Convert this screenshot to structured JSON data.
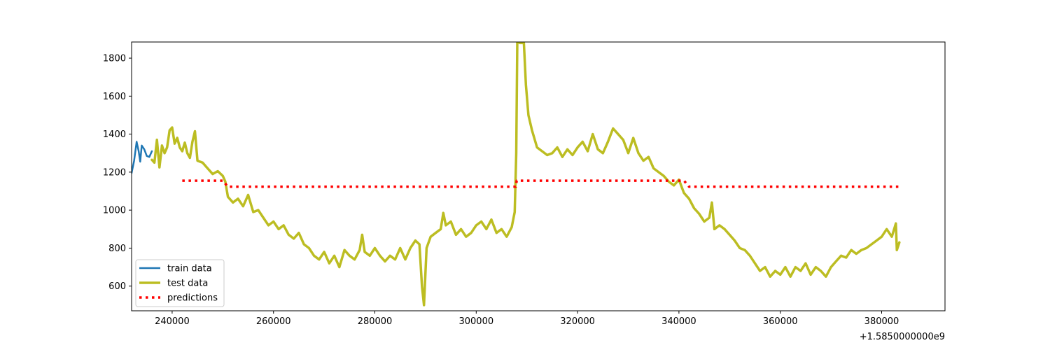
{
  "chart_data": {
    "type": "line",
    "title": "",
    "xlabel": "",
    "ylabel": "",
    "x_offset_label": "+1.5850000000e9",
    "xlim": [
      232000,
      392500
    ],
    "ylim": [
      470,
      1885
    ],
    "x_ticks": [
      240000,
      260000,
      280000,
      300000,
      320000,
      340000,
      360000,
      380000
    ],
    "x_tick_labels": [
      "240000",
      "260000",
      "280000",
      "300000",
      "320000",
      "340000",
      "360000",
      "380000"
    ],
    "y_ticks": [
      600,
      800,
      1000,
      1200,
      1400,
      1600,
      1800
    ],
    "y_tick_labels": [
      "600",
      "800",
      "1000",
      "1200",
      "1400",
      "1600",
      "1800"
    ],
    "grid": false,
    "legend_position": "lower-left",
    "series": [
      {
        "name": "train data",
        "color": "#1f77b4",
        "style": "solid",
        "points": [
          [
            232000,
            1195
          ],
          [
            232500,
            1260
          ],
          [
            233000,
            1360
          ],
          [
            233400,
            1310
          ],
          [
            233700,
            1255
          ],
          [
            234000,
            1340
          ],
          [
            234500,
            1320
          ],
          [
            235000,
            1285
          ],
          [
            235500,
            1280
          ],
          [
            236000,
            1310
          ]
        ]
      },
      {
        "name": "test data",
        "color": "#bcbd22",
        "style": "solid",
        "points": [
          [
            236000,
            1265
          ],
          [
            236500,
            1250
          ],
          [
            237000,
            1370
          ],
          [
            237500,
            1225
          ],
          [
            238000,
            1340
          ],
          [
            238500,
            1300
          ],
          [
            239000,
            1330
          ],
          [
            239500,
            1420
          ],
          [
            240000,
            1435
          ],
          [
            240500,
            1350
          ],
          [
            241000,
            1380
          ],
          [
            241500,
            1330
          ],
          [
            242000,
            1310
          ],
          [
            242500,
            1355
          ],
          [
            243000,
            1300
          ],
          [
            243500,
            1275
          ],
          [
            244000,
            1360
          ],
          [
            244500,
            1415
          ],
          [
            245000,
            1260
          ],
          [
            246000,
            1250
          ],
          [
            247000,
            1220
          ],
          [
            248000,
            1190
          ],
          [
            249000,
            1205
          ],
          [
            250000,
            1180
          ],
          [
            250500,
            1150
          ],
          [
            251000,
            1070
          ],
          [
            252000,
            1040
          ],
          [
            253000,
            1060
          ],
          [
            254000,
            1020
          ],
          [
            255000,
            1080
          ],
          [
            256000,
            990
          ],
          [
            257000,
            1000
          ],
          [
            258000,
            960
          ],
          [
            259000,
            920
          ],
          [
            260000,
            940
          ],
          [
            261000,
            900
          ],
          [
            262000,
            920
          ],
          [
            263000,
            870
          ],
          [
            264000,
            850
          ],
          [
            265000,
            880
          ],
          [
            266000,
            820
          ],
          [
            267000,
            800
          ],
          [
            268000,
            760
          ],
          [
            269000,
            740
          ],
          [
            270000,
            780
          ],
          [
            271000,
            720
          ],
          [
            272000,
            760
          ],
          [
            273000,
            700
          ],
          [
            274000,
            790
          ],
          [
            275000,
            760
          ],
          [
            276000,
            740
          ],
          [
            277000,
            790
          ],
          [
            277500,
            870
          ],
          [
            278000,
            780
          ],
          [
            279000,
            760
          ],
          [
            280000,
            800
          ],
          [
            281000,
            760
          ],
          [
            282000,
            730
          ],
          [
            283000,
            760
          ],
          [
            284000,
            740
          ],
          [
            285000,
            800
          ],
          [
            286000,
            740
          ],
          [
            287000,
            800
          ],
          [
            288000,
            840
          ],
          [
            288800,
            820
          ],
          [
            289300,
            600
          ],
          [
            289700,
            500
          ],
          [
            290200,
            800
          ],
          [
            291000,
            860
          ],
          [
            292000,
            880
          ],
          [
            293000,
            900
          ],
          [
            293500,
            985
          ],
          [
            294000,
            920
          ],
          [
            295000,
            940
          ],
          [
            296000,
            870
          ],
          [
            297000,
            900
          ],
          [
            298000,
            860
          ],
          [
            299000,
            880
          ],
          [
            300000,
            920
          ],
          [
            301000,
            940
          ],
          [
            302000,
            900
          ],
          [
            303000,
            950
          ],
          [
            304000,
            880
          ],
          [
            305000,
            900
          ],
          [
            306000,
            860
          ],
          [
            307000,
            910
          ],
          [
            307600,
            990
          ],
          [
            307900,
            1300
          ],
          [
            308100,
            1890
          ],
          [
            308600,
            1880
          ],
          [
            309400,
            1880
          ],
          [
            309800,
            1660
          ],
          [
            310300,
            1500
          ],
          [
            311000,
            1420
          ],
          [
            312000,
            1330
          ],
          [
            313000,
            1310
          ],
          [
            314000,
            1290
          ],
          [
            315000,
            1300
          ],
          [
            316000,
            1330
          ],
          [
            317000,
            1280
          ],
          [
            318000,
            1320
          ],
          [
            319000,
            1290
          ],
          [
            320000,
            1330
          ],
          [
            321000,
            1360
          ],
          [
            322000,
            1310
          ],
          [
            323000,
            1400
          ],
          [
            324000,
            1320
          ],
          [
            325000,
            1300
          ],
          [
            326000,
            1360
          ],
          [
            327000,
            1430
          ],
          [
            328000,
            1400
          ],
          [
            329000,
            1370
          ],
          [
            330000,
            1300
          ],
          [
            331000,
            1380
          ],
          [
            332000,
            1300
          ],
          [
            333000,
            1260
          ],
          [
            334000,
            1280
          ],
          [
            335000,
            1220
          ],
          [
            336000,
            1200
          ],
          [
            337000,
            1180
          ],
          [
            338000,
            1150
          ],
          [
            339000,
            1130
          ],
          [
            340000,
            1160
          ],
          [
            341000,
            1090
          ],
          [
            342000,
            1060
          ],
          [
            343000,
            1010
          ],
          [
            344000,
            980
          ],
          [
            345000,
            940
          ],
          [
            346000,
            960
          ],
          [
            346500,
            1040
          ],
          [
            347000,
            900
          ],
          [
            348000,
            920
          ],
          [
            349000,
            900
          ],
          [
            350000,
            870
          ],
          [
            351000,
            840
          ],
          [
            352000,
            800
          ],
          [
            353000,
            790
          ],
          [
            354000,
            760
          ],
          [
            355000,
            720
          ],
          [
            356000,
            680
          ],
          [
            357000,
            700
          ],
          [
            358000,
            650
          ],
          [
            359000,
            680
          ],
          [
            360000,
            660
          ],
          [
            361000,
            700
          ],
          [
            362000,
            650
          ],
          [
            363000,
            700
          ],
          [
            364000,
            680
          ],
          [
            365000,
            720
          ],
          [
            366000,
            660
          ],
          [
            367000,
            700
          ],
          [
            368000,
            680
          ],
          [
            369000,
            650
          ],
          [
            370000,
            700
          ],
          [
            371000,
            730
          ],
          [
            372000,
            760
          ],
          [
            373000,
            750
          ],
          [
            374000,
            790
          ],
          [
            375000,
            770
          ],
          [
            376000,
            790
          ],
          [
            377000,
            800
          ],
          [
            378000,
            820
          ],
          [
            379000,
            840
          ],
          [
            380000,
            860
          ],
          [
            381000,
            900
          ],
          [
            382000,
            860
          ],
          [
            382800,
            930
          ],
          [
            383000,
            790
          ],
          [
            383500,
            830
          ]
        ]
      },
      {
        "name": "predictions",
        "color": "#ff0000",
        "style": "dotted",
        "points": [
          [
            242000,
            1155
          ],
          [
            250000,
            1155
          ],
          [
            251000,
            1123
          ],
          [
            307800,
            1123
          ],
          [
            308000,
            1155
          ],
          [
            341000,
            1155
          ],
          [
            342000,
            1123
          ],
          [
            383500,
            1123
          ]
        ]
      }
    ]
  }
}
